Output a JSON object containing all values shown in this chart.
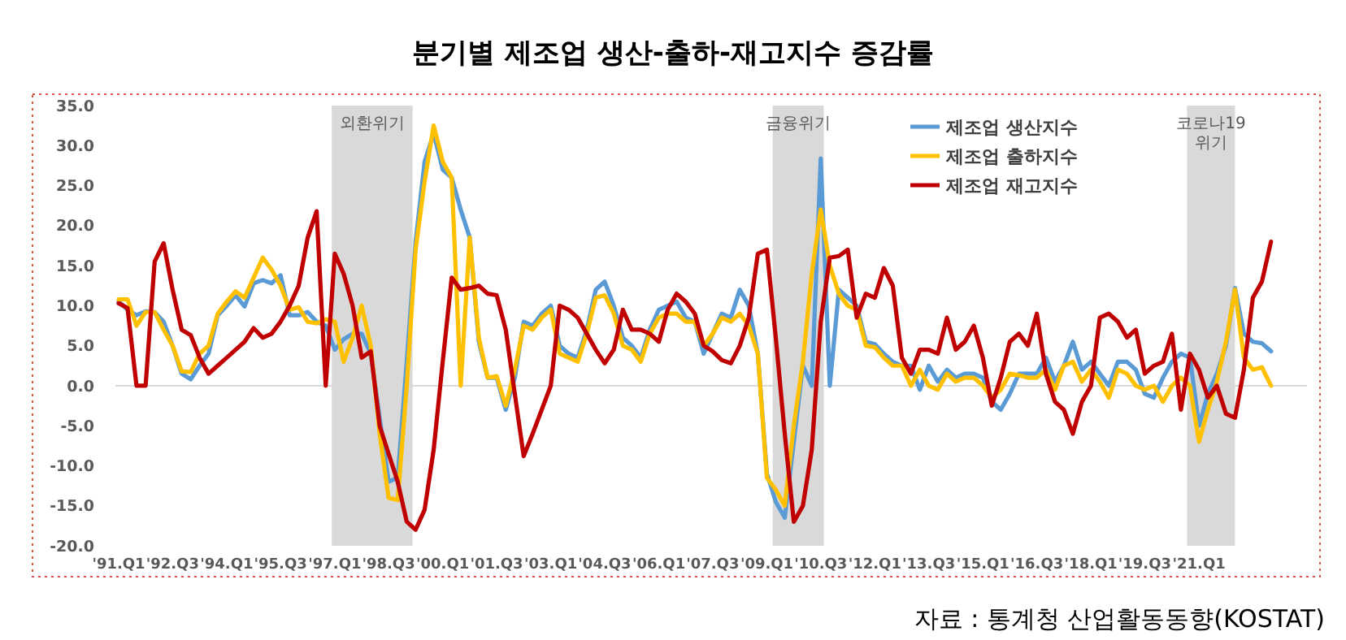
{
  "chart_data": {
    "type": "line",
    "title": "분기별 제조업 생산-출하-재고지수 증감률",
    "x": [
      "1991-01",
      "1991-04",
      "1991-07",
      "1991-10",
      "1992-01",
      "1992-04",
      "1992-07",
      "1992-10",
      "1993-01",
      "1993-04",
      "1993-07",
      "1993-10",
      "1994-01",
      "1994-04",
      "1994-07",
      "1994-10",
      "1995-01",
      "1995-04",
      "1995-07",
      "1995-10",
      "1996-01",
      "1996-04",
      "1996-07",
      "1996-10",
      "1997-01",
      "1997-04",
      "1997-07",
      "1997-10",
      "1998-01",
      "1998-04",
      "1998-07",
      "1998-10",
      "1999-01",
      "1999-04",
      "1999-07",
      "1999-10",
      "2000-01",
      "2000-04",
      "2000-07",
      "2000-10",
      "2001-01",
      "2001-04",
      "2001-07",
      "2001-10",
      "2002-01",
      "2002-04",
      "2002-07",
      "2002-10",
      "2003-01",
      "2003-04",
      "2003-07",
      "2003-10",
      "2004-01",
      "2004-04",
      "2004-07",
      "2004-10",
      "2005-01",
      "2005-04",
      "2005-07",
      "2005-10",
      "2006-01",
      "2006-04",
      "2006-07",
      "2006-10",
      "2007-01",
      "2007-04",
      "2007-07",
      "2007-10",
      "2008-01",
      "2008-04",
      "2008-07",
      "2008-10",
      "2009-01",
      "2009-04",
      "2009-07",
      "2009-10",
      "2010-01",
      "2010-04",
      "2010-07",
      "2010-10",
      "2011-01",
      "2011-04",
      "2011-07",
      "2011-10",
      "2012-01",
      "2012-04",
      "2012-07",
      "2012-10",
      "2013-01",
      "2013-04",
      "2013-07",
      "2013-10",
      "2014-01",
      "2014-04",
      "2014-07",
      "2014-10",
      "2015-01",
      "2015-04",
      "2015-07",
      "2015-10",
      "2016-01",
      "2016-04",
      "2016-07",
      "2016-10",
      "2017-01",
      "2017-04",
      "2017-07",
      "2017-10",
      "2018-01",
      "2018-04",
      "2018-07",
      "2018-10",
      "2019-01",
      "2019-04",
      "2019-07",
      "2019-10",
      "2020-01",
      "2020-04",
      "2020-07",
      "2020-10",
      "2021-01",
      "2021-04",
      "2021-07",
      "2021-10",
      "2022-01",
      "2022-04",
      "2022-07",
      "2022-10",
      "2023-01"
    ],
    "series": [
      {
        "name": "제조업 생산지수",
        "color": "#5b9bd5",
        "values": [
          10.5,
          9.5,
          8.8,
          9.3,
          9.2,
          8,
          5,
          1.5,
          0.8,
          2.5,
          4,
          8.8,
          10,
          11.3,
          9.9,
          12.8,
          13.2,
          12.8,
          13.8,
          8.8,
          8.8,
          9.2,
          8,
          7.5,
          4.5,
          5.8,
          6.5,
          6.5,
          4,
          -4,
          -12,
          -11.5,
          3,
          18,
          28,
          31.5,
          27,
          26,
          22,
          18.5,
          5.5,
          1,
          1,
          -3,
          1,
          8,
          7.5,
          9,
          10,
          5,
          4,
          3.5,
          7,
          12,
          13,
          10,
          6,
          5,
          3.5,
          7,
          9.5,
          10,
          10.5,
          8.5,
          8,
          4,
          6.5,
          9,
          8.5,
          12,
          10,
          4,
          -11,
          -14.5,
          -16.5,
          -7,
          2.5,
          0,
          28.4,
          0,
          12,
          11,
          10,
          5.5,
          5.2,
          4,
          3,
          2.5,
          2.5,
          -0.5,
          2.5,
          0.5,
          2,
          1,
          1.5,
          1.5,
          1,
          -2,
          -3,
          -1,
          1.5,
          1.5,
          1.5,
          3.5,
          0.5,
          2.5,
          5.5,
          2,
          3,
          1.5,
          0,
          3,
          3,
          2,
          -1,
          -1.5,
          1,
          3,
          4,
          3.5,
          -5,
          -1,
          1.5,
          5,
          12.2,
          6.5,
          5.5,
          5.3,
          4.3
        ]
      },
      {
        "name": "제조업 출하지수",
        "color": "#ffc000",
        "values": [
          10.8,
          10.8,
          7.5,
          9.2,
          9.2,
          7,
          5,
          1.8,
          1.7,
          4,
          5,
          9,
          10.5,
          11.8,
          11,
          13.5,
          16,
          14.5,
          12.5,
          9.5,
          9.8,
          8,
          7.8,
          8.3,
          8,
          3,
          6,
          10,
          5,
          -6,
          -14,
          -14.3,
          0,
          17,
          25.5,
          32.5,
          28,
          26,
          0,
          18.5,
          6,
          1,
          1.2,
          -2.5,
          2,
          7.5,
          7,
          8.5,
          9.5,
          4,
          3.5,
          3,
          6.5,
          11,
          11.3,
          9,
          5,
          4.5,
          3,
          6.5,
          8.5,
          9,
          9,
          8,
          8,
          5,
          6.5,
          8.5,
          8,
          9,
          7.5,
          4,
          -11.5,
          -13,
          -15,
          -5,
          3,
          14,
          22,
          15,
          11.5,
          10,
          9.5,
          5,
          4.8,
          3.5,
          2.5,
          2.5,
          0,
          2,
          0,
          -0.5,
          1.5,
          0.5,
          1,
          1,
          0,
          -1.5,
          -0.5,
          1.5,
          1.3,
          1,
          1,
          2,
          -0.5,
          2.5,
          3,
          0.5,
          2,
          0.5,
          -1.5,
          2,
          1.5,
          0,
          -0.5,
          0,
          -2,
          0,
          1,
          0,
          -7,
          -3,
          0.5,
          5.5,
          12,
          3.5,
          2,
          2.3,
          0
        ]
      },
      {
        "name": "제조업 재고지수",
        "color": "#c00000",
        "values": [
          10.3,
          9.7,
          0,
          0,
          15.5,
          17.8,
          12,
          7,
          6.3,
          3.5,
          1.5,
          2.5,
          3.5,
          4.5,
          5.5,
          7.2,
          6,
          6.5,
          8,
          10,
          12.5,
          18.5,
          21.8,
          0,
          16.5,
          14,
          10,
          3.5,
          4.3,
          -5,
          -8.5,
          -12,
          -17,
          -18,
          -15.5,
          -8,
          3,
          13.5,
          12,
          12.2,
          12.5,
          11.5,
          11.3,
          7,
          -1,
          -8.8,
          -6,
          -3,
          0,
          10,
          9.5,
          8.5,
          6.5,
          4.5,
          2.8,
          4.5,
          9.5,
          7,
          7,
          6.5,
          5.5,
          9.5,
          11.5,
          10.5,
          9,
          5,
          4.3,
          3.2,
          2.8,
          5,
          8.5,
          16.5,
          17,
          6,
          -6,
          -17,
          -15,
          -8,
          8,
          16,
          16.2,
          17,
          8.5,
          11.5,
          11,
          14.7,
          12.5,
          3.5,
          1.5,
          4.5,
          4.5,
          4,
          8.5,
          4.5,
          5.5,
          7.5,
          3.5,
          -2.5,
          1,
          5.5,
          6.5,
          5,
          9,
          1.5,
          -2,
          -3,
          -6,
          -2,
          0,
          8.5,
          9,
          8,
          6,
          7,
          1.5,
          2.5,
          3,
          6.5,
          -3,
          4,
          2,
          -1.5,
          0,
          -3.5,
          -4,
          2,
          11,
          13,
          18
        ]
      }
    ],
    "xlim": [
      "1991-01",
      "2024-01"
    ],
    "xticks": [
      {
        "value": "1991-01",
        "label": "'91.Q1"
      },
      {
        "value": "1992-07",
        "label": "'92.Q3"
      },
      {
        "value": "1994-01",
        "label": "'94.Q1"
      },
      {
        "value": "1995-07",
        "label": "'95.Q3"
      },
      {
        "value": "1997-01",
        "label": "'97.Q1"
      },
      {
        "value": "1998-07",
        "label": "'98.Q3"
      },
      {
        "value": "2000-01",
        "label": "'00.Q1"
      },
      {
        "value": "2001-07",
        "label": "'01.Q3"
      },
      {
        "value": "2003-01",
        "label": "'03.Q1"
      },
      {
        "value": "2004-07",
        "label": "'04.Q3"
      },
      {
        "value": "2006-01",
        "label": "'06.Q1"
      },
      {
        "value": "2007-07",
        "label": "'07.Q3"
      },
      {
        "value": "2009-01",
        "label": "'09.Q1"
      },
      {
        "value": "2010-07",
        "label": "'10.Q3"
      },
      {
        "value": "2012-01",
        "label": "'12.Q1"
      },
      {
        "value": "2013-07",
        "label": "'13.Q3"
      },
      {
        "value": "2015-01",
        "label": "'15.Q1"
      },
      {
        "value": "2016-07",
        "label": "'16.Q3"
      },
      {
        "value": "2018-01",
        "label": "'18.Q1"
      },
      {
        "value": "2019-07",
        "label": "'19.Q3"
      },
      {
        "value": "2021-01",
        "label": "'21.Q1"
      }
    ],
    "ylim": [
      -20,
      35
    ],
    "yticks": [
      {
        "value": -20,
        "label": "-20.0"
      },
      {
        "value": -15,
        "label": "-15.0"
      },
      {
        "value": -10,
        "label": "-10.0"
      },
      {
        "value": -5,
        "label": "-5.0"
      },
      {
        "value": 0,
        "label": "0.0"
      },
      {
        "value": 5,
        "label": "5.0"
      },
      {
        "value": 10,
        "label": "10.0"
      },
      {
        "value": 15,
        "label": "15.0"
      },
      {
        "value": 20,
        "label": "20.0"
      },
      {
        "value": 25,
        "label": "25.0"
      },
      {
        "value": 30,
        "label": "30.0"
      },
      {
        "value": 35,
        "label": "35.0"
      }
    ],
    "ref_lines": [
      {
        "axis": "y",
        "value": 0,
        "color": "#d9d9d9"
      }
    ],
    "bands": [
      {
        "axis": "x",
        "from": "1996-12",
        "to": "1999-03",
        "label": "외환위기",
        "color": "#d9d9d9"
      },
      {
        "axis": "x",
        "from": "2009-03",
        "to": "2010-08",
        "label": "금융위기",
        "color": "#d9d9d9"
      },
      {
        "axis": "x",
        "from": "2020-09",
        "to": "2022-01",
        "label": "코로나19 위기",
        "color": "#d9d9d9"
      }
    ],
    "legend": "top right",
    "annotations": [
      "자료 : 통계청 산업활동동향(KOSTAT)"
    ]
  }
}
